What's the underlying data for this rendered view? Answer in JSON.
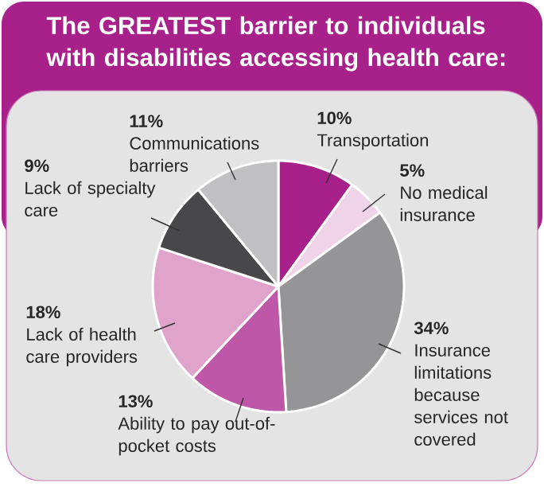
{
  "chart_data": {
    "type": "pie",
    "title": "The GREATEST barrier to individuals with disabilities accessing health care:",
    "categories": [
      "Transportation",
      "No medical insurance",
      "Insurance limitations because services not covered",
      "Ability to pay out-of-pocket costs",
      "Lack of health care providers",
      "Lack of specialty care",
      "Communications barriers"
    ],
    "values": [
      10,
      5,
      34,
      13,
      18,
      9,
      11
    ],
    "value_labels": [
      "10%",
      "5%",
      "34%",
      "13%",
      "18%",
      "9%",
      "11%"
    ],
    "colors": [
      "#a8218a",
      "#efd3e8",
      "#959597",
      "#bf57a8",
      "#dfa3cc",
      "#48484a",
      "#c0c0c2"
    ]
  }
}
